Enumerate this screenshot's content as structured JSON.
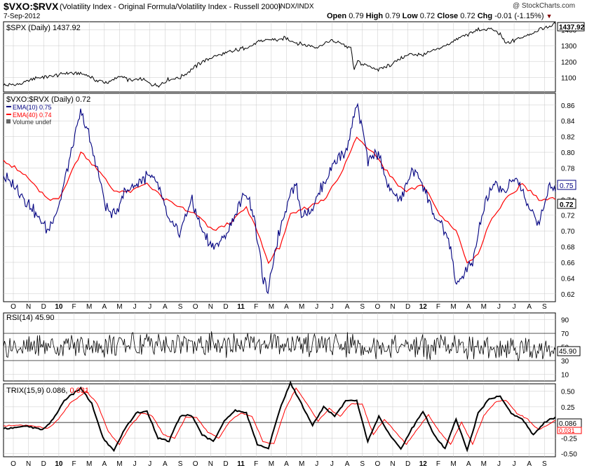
{
  "header": {
    "symbol": "$VXO:$RVX",
    "description": "(Volatility Index - Original Formula/Volatility Index - Russell 2000)",
    "exchange": "INDX/INDX",
    "date": "7-Sep-2012",
    "copyright": "@ StockCharts.com",
    "open_label": "Open",
    "open": "0.79",
    "high_label": "High",
    "high": "0.79",
    "low_label": "Low",
    "low": "0.72",
    "close_label": "Close",
    "close": "0.72",
    "chg_label": "Chg",
    "chg": "-0.01 (-1.15%)",
    "chg_icon": "down-triangle-icon"
  },
  "colors": {
    "price": "#000000",
    "ema10": "#000080",
    "ema40": "#ff0000",
    "chg": "#800000",
    "grid": "#c8c8c8"
  },
  "x_axis": {
    "labels": [
      "O",
      "N",
      "D",
      "10",
      "F",
      "M",
      "A",
      "M",
      "J",
      "J",
      "A",
      "S",
      "O",
      "N",
      "D",
      "11",
      "F",
      "M",
      "A",
      "M",
      "J",
      "J",
      "A",
      "S",
      "O",
      "N",
      "D",
      "12",
      "F",
      "M",
      "A",
      "M",
      "J",
      "J",
      "A",
      "S"
    ],
    "bold": [
      "10",
      "11",
      "12"
    ]
  },
  "chart_data": [
    {
      "type": "line",
      "title": "$SPX (Daily) 1437.92",
      "series": [
        {
          "name": "$SPX (Daily)",
          "last": "1437.92"
        }
      ],
      "y_ticks": [
        "1400",
        "1300",
        "1200",
        "1100"
      ],
      "ylim": [
        1010,
        1450
      ],
      "last_label": "1437.92",
      "points": [
        [
          0,
          1050
        ],
        [
          0.03,
          1060
        ],
        [
          0.06,
          1100
        ],
        [
          0.09,
          1110
        ],
        [
          0.12,
          1130
        ],
        [
          0.15,
          1120
        ],
        [
          0.17,
          1080
        ],
        [
          0.19,
          1065
        ],
        [
          0.21,
          1110
        ],
        [
          0.23,
          1080
        ],
        [
          0.25,
          1090
        ],
        [
          0.27,
          1055
        ],
        [
          0.28,
          1050
        ],
        [
          0.3,
          1090
        ],
        [
          0.32,
          1100
        ],
        [
          0.34,
          1150
        ],
        [
          0.36,
          1200
        ],
        [
          0.38,
          1230
        ],
        [
          0.4,
          1250
        ],
        [
          0.42,
          1270
        ],
        [
          0.44,
          1290
        ],
        [
          0.46,
          1320
        ],
        [
          0.48,
          1340
        ],
        [
          0.5,
          1330
        ],
        [
          0.51,
          1350
        ],
        [
          0.53,
          1320
        ],
        [
          0.55,
          1300
        ],
        [
          0.57,
          1290
        ],
        [
          0.59,
          1330
        ],
        [
          0.61,
          1320
        ],
        [
          0.63,
          1280
        ],
        [
          0.635,
          1140
        ],
        [
          0.64,
          1200
        ],
        [
          0.66,
          1170
        ],
        [
          0.68,
          1150
        ],
        [
          0.7,
          1180
        ],
        [
          0.72,
          1220
        ],
        [
          0.74,
          1250
        ],
        [
          0.76,
          1240
        ],
        [
          0.78,
          1270
        ],
        [
          0.8,
          1300
        ],
        [
          0.82,
          1340
        ],
        [
          0.84,
          1370
        ],
        [
          0.86,
          1400
        ],
        [
          0.87,
          1390
        ],
        [
          0.88,
          1410
        ],
        [
          0.9,
          1370
        ],
        [
          0.91,
          1310
        ],
        [
          0.93,
          1340
        ],
        [
          0.95,
          1370
        ],
        [
          0.97,
          1400
        ],
        [
          0.99,
          1420
        ],
        [
          1,
          1437.92
        ]
      ]
    },
    {
      "type": "line",
      "title": "$VXO:$RVX (Daily) 0.72",
      "series": [
        {
          "name": "EMA(10) 0.75",
          "last": "0.75"
        },
        {
          "name": "EMA(40) 0.74",
          "last": "0.74"
        },
        {
          "name": "Volume undef"
        }
      ],
      "y_ticks": [
        "0.86",
        "0.84",
        "0.82",
        "0.80",
        "0.78",
        "0.76",
        "0.74",
        "0.72",
        "0.70",
        "0.68",
        "0.66",
        "0.64",
        "0.62"
      ],
      "ylim": [
        0.61,
        0.875
      ],
      "price_last": "0.72",
      "ema10_last": "0.75",
      "ema10": [
        [
          0,
          0.77
        ],
        [
          0.03,
          0.75
        ],
        [
          0.06,
          0.72
        ],
        [
          0.08,
          0.7
        ],
        [
          0.1,
          0.73
        ],
        [
          0.12,
          0.79
        ],
        [
          0.14,
          0.85
        ],
        [
          0.155,
          0.82
        ],
        [
          0.17,
          0.78
        ],
        [
          0.185,
          0.73
        ],
        [
          0.2,
          0.72
        ],
        [
          0.22,
          0.75
        ],
        [
          0.24,
          0.76
        ],
        [
          0.26,
          0.77
        ],
        [
          0.28,
          0.76
        ],
        [
          0.3,
          0.71
        ],
        [
          0.32,
          0.7
        ],
        [
          0.34,
          0.74
        ],
        [
          0.36,
          0.7
        ],
        [
          0.38,
          0.68
        ],
        [
          0.4,
          0.69
        ],
        [
          0.42,
          0.72
        ],
        [
          0.44,
          0.75
        ],
        [
          0.45,
          0.73
        ],
        [
          0.46,
          0.69
        ],
        [
          0.47,
          0.64
        ],
        [
          0.48,
          0.62
        ],
        [
          0.49,
          0.67
        ],
        [
          0.5,
          0.7
        ],
        [
          0.52,
          0.75
        ],
        [
          0.53,
          0.76
        ],
        [
          0.54,
          0.72
        ],
        [
          0.56,
          0.73
        ],
        [
          0.58,
          0.76
        ],
        [
          0.6,
          0.79
        ],
        [
          0.62,
          0.8
        ],
        [
          0.64,
          0.86
        ],
        [
          0.65,
          0.83
        ],
        [
          0.66,
          0.79
        ],
        [
          0.68,
          0.8
        ],
        [
          0.7,
          0.75
        ],
        [
          0.72,
          0.74
        ],
        [
          0.74,
          0.78
        ],
        [
          0.76,
          0.76
        ],
        [
          0.78,
          0.72
        ],
        [
          0.8,
          0.7
        ],
        [
          0.81,
          0.68
        ],
        [
          0.82,
          0.63
        ],
        [
          0.83,
          0.64
        ],
        [
          0.85,
          0.66
        ],
        [
          0.87,
          0.73
        ],
        [
          0.89,
          0.76
        ],
        [
          0.91,
          0.75
        ],
        [
          0.93,
          0.77
        ],
        [
          0.95,
          0.73
        ],
        [
          0.97,
          0.71
        ],
        [
          0.99,
          0.76
        ],
        [
          1,
          0.75
        ]
      ],
      "ema40": [
        [
          0,
          0.79
        ],
        [
          0.04,
          0.77
        ],
        [
          0.08,
          0.74
        ],
        [
          0.1,
          0.74
        ],
        [
          0.12,
          0.77
        ],
        [
          0.14,
          0.8
        ],
        [
          0.17,
          0.78
        ],
        [
          0.2,
          0.75
        ],
        [
          0.23,
          0.75
        ],
        [
          0.26,
          0.76
        ],
        [
          0.29,
          0.74
        ],
        [
          0.32,
          0.73
        ],
        [
          0.35,
          0.72
        ],
        [
          0.38,
          0.7
        ],
        [
          0.41,
          0.71
        ],
        [
          0.44,
          0.73
        ],
        [
          0.46,
          0.7
        ],
        [
          0.48,
          0.66
        ],
        [
          0.5,
          0.68
        ],
        [
          0.52,
          0.72
        ],
        [
          0.55,
          0.73
        ],
        [
          0.58,
          0.74
        ],
        [
          0.61,
          0.77
        ],
        [
          0.64,
          0.82
        ],
        [
          0.67,
          0.8
        ],
        [
          0.7,
          0.77
        ],
        [
          0.73,
          0.75
        ],
        [
          0.76,
          0.76
        ],
        [
          0.79,
          0.72
        ],
        [
          0.82,
          0.7
        ],
        [
          0.84,
          0.66
        ],
        [
          0.86,
          0.67
        ],
        [
          0.88,
          0.71
        ],
        [
          0.91,
          0.74
        ],
        [
          0.94,
          0.76
        ],
        [
          0.97,
          0.74
        ],
        [
          1,
          0.74
        ]
      ]
    },
    {
      "type": "line",
      "title": "RSI(14) 45.90",
      "series": [
        {
          "name": "RSI(14)",
          "last": "45.90"
        }
      ],
      "y_ticks": [
        "90",
        "70",
        "50",
        "30",
        "10"
      ],
      "ylim": [
        0,
        100
      ],
      "last_label": "45.90",
      "center": 50,
      "upper": 70,
      "lower": 30
    },
    {
      "type": "line",
      "title": "TRIX(15,9) 0.086,",
      "signal_label": "0.031",
      "series": [
        {
          "name": "TRIX(15,9)",
          "last": "0.086"
        },
        {
          "name": "Signal",
          "last": "0.031"
        }
      ],
      "y_ticks": [
        "0.50",
        "0.25",
        "-0.25",
        "-0.50"
      ],
      "ylim": [
        -0.55,
        0.62
      ],
      "last_label": "0.086",
      "signal_last_label": "0.031",
      "trix": [
        [
          0,
          -0.1
        ],
        [
          0.04,
          -0.06
        ],
        [
          0.07,
          -0.12
        ],
        [
          0.09,
          0.05
        ],
        [
          0.11,
          0.35
        ],
        [
          0.14,
          0.55
        ],
        [
          0.16,
          0.3
        ],
        [
          0.18,
          -0.25
        ],
        [
          0.2,
          -0.45
        ],
        [
          0.22,
          -0.1
        ],
        [
          0.24,
          0.15
        ],
        [
          0.26,
          0.18
        ],
        [
          0.28,
          -0.25
        ],
        [
          0.3,
          -0.3
        ],
        [
          0.32,
          0.1
        ],
        [
          0.34,
          0.12
        ],
        [
          0.36,
          -0.2
        ],
        [
          0.38,
          -0.3
        ],
        [
          0.4,
          0.02
        ],
        [
          0.42,
          0.2
        ],
        [
          0.44,
          0.15
        ],
        [
          0.46,
          -0.35
        ],
        [
          0.48,
          -0.42
        ],
        [
          0.5,
          0.2
        ],
        [
          0.52,
          0.63
        ],
        [
          0.54,
          0.3
        ],
        [
          0.56,
          -0.05
        ],
        [
          0.58,
          0.25
        ],
        [
          0.6,
          0.1
        ],
        [
          0.62,
          0.35
        ],
        [
          0.64,
          0.35
        ],
        [
          0.66,
          -0.3
        ],
        [
          0.68,
          0.1
        ],
        [
          0.7,
          -0.2
        ],
        [
          0.72,
          -0.42
        ],
        [
          0.74,
          -0.1
        ],
        [
          0.76,
          0.18
        ],
        [
          0.78,
          -0.2
        ],
        [
          0.8,
          -0.42
        ],
        [
          0.82,
          0.05
        ],
        [
          0.84,
          -0.45
        ],
        [
          0.86,
          0.15
        ],
        [
          0.88,
          0.38
        ],
        [
          0.9,
          0.42
        ],
        [
          0.92,
          0.15
        ],
        [
          0.94,
          0.05
        ],
        [
          0.96,
          -0.2
        ],
        [
          0.98,
          0.0
        ],
        [
          1,
          0.086
        ]
      ],
      "signal": [
        [
          0,
          -0.05
        ],
        [
          0.05,
          -0.05
        ],
        [
          0.08,
          -0.1
        ],
        [
          0.1,
          0.05
        ],
        [
          0.12,
          0.3
        ],
        [
          0.15,
          0.5
        ],
        [
          0.17,
          0.3
        ],
        [
          0.19,
          -0.15
        ],
        [
          0.21,
          -0.35
        ],
        [
          0.23,
          -0.05
        ],
        [
          0.25,
          0.15
        ],
        [
          0.27,
          0.1
        ],
        [
          0.29,
          -0.2
        ],
        [
          0.31,
          -0.25
        ],
        [
          0.33,
          0.08
        ],
        [
          0.35,
          0.08
        ],
        [
          0.37,
          -0.15
        ],
        [
          0.39,
          -0.25
        ],
        [
          0.41,
          0.02
        ],
        [
          0.43,
          0.15
        ],
        [
          0.45,
          0.1
        ],
        [
          0.47,
          -0.3
        ],
        [
          0.49,
          -0.35
        ],
        [
          0.51,
          0.2
        ],
        [
          0.53,
          0.55
        ],
        [
          0.55,
          0.3
        ],
        [
          0.57,
          0.02
        ],
        [
          0.59,
          0.22
        ],
        [
          0.61,
          0.1
        ],
        [
          0.63,
          0.3
        ],
        [
          0.65,
          0.3
        ],
        [
          0.67,
          -0.2
        ],
        [
          0.69,
          0.05
        ],
        [
          0.71,
          -0.15
        ],
        [
          0.73,
          -0.35
        ],
        [
          0.75,
          -0.1
        ],
        [
          0.77,
          0.12
        ],
        [
          0.79,
          -0.15
        ],
        [
          0.81,
          -0.35
        ],
        [
          0.83,
          0.0
        ],
        [
          0.85,
          -0.35
        ],
        [
          0.87,
          0.1
        ],
        [
          0.89,
          0.32
        ],
        [
          0.91,
          0.36
        ],
        [
          0.93,
          0.15
        ],
        [
          0.95,
          0.05
        ],
        [
          0.97,
          -0.12
        ],
        [
          0.99,
          -0.02
        ],
        [
          1,
          0.031
        ]
      ]
    }
  ]
}
